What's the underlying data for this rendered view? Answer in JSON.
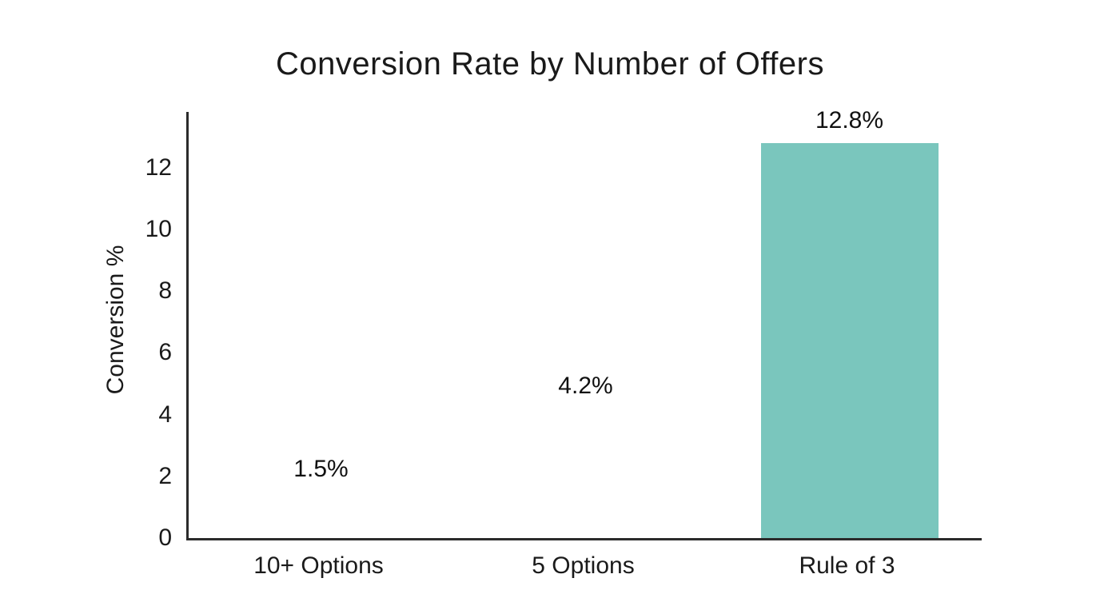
{
  "chart_data": {
    "type": "bar",
    "title": "Conversion Rate by Number of Offers",
    "xlabel": "",
    "ylabel": "Conversion %",
    "categories": [
      "10+ Options",
      "5 Options",
      "Rule of 3"
    ],
    "values": [
      1.5,
      4.2,
      12.8
    ],
    "value_labels": [
      "1.5%",
      "4.2%",
      "12.8%"
    ],
    "bar_colors": [
      "#ffffff",
      "#ffffff",
      "#7AC6BD"
    ],
    "yticks": [
      0,
      2,
      4,
      6,
      8,
      10,
      12
    ],
    "ylim": [
      0,
      13.8
    ],
    "grid": false,
    "legend_position": "none",
    "background_color": "#ffffff",
    "axis_color": "#2b2b2b",
    "text_color": "#1a1a1a",
    "accent_color": "#7AC6BD"
  }
}
